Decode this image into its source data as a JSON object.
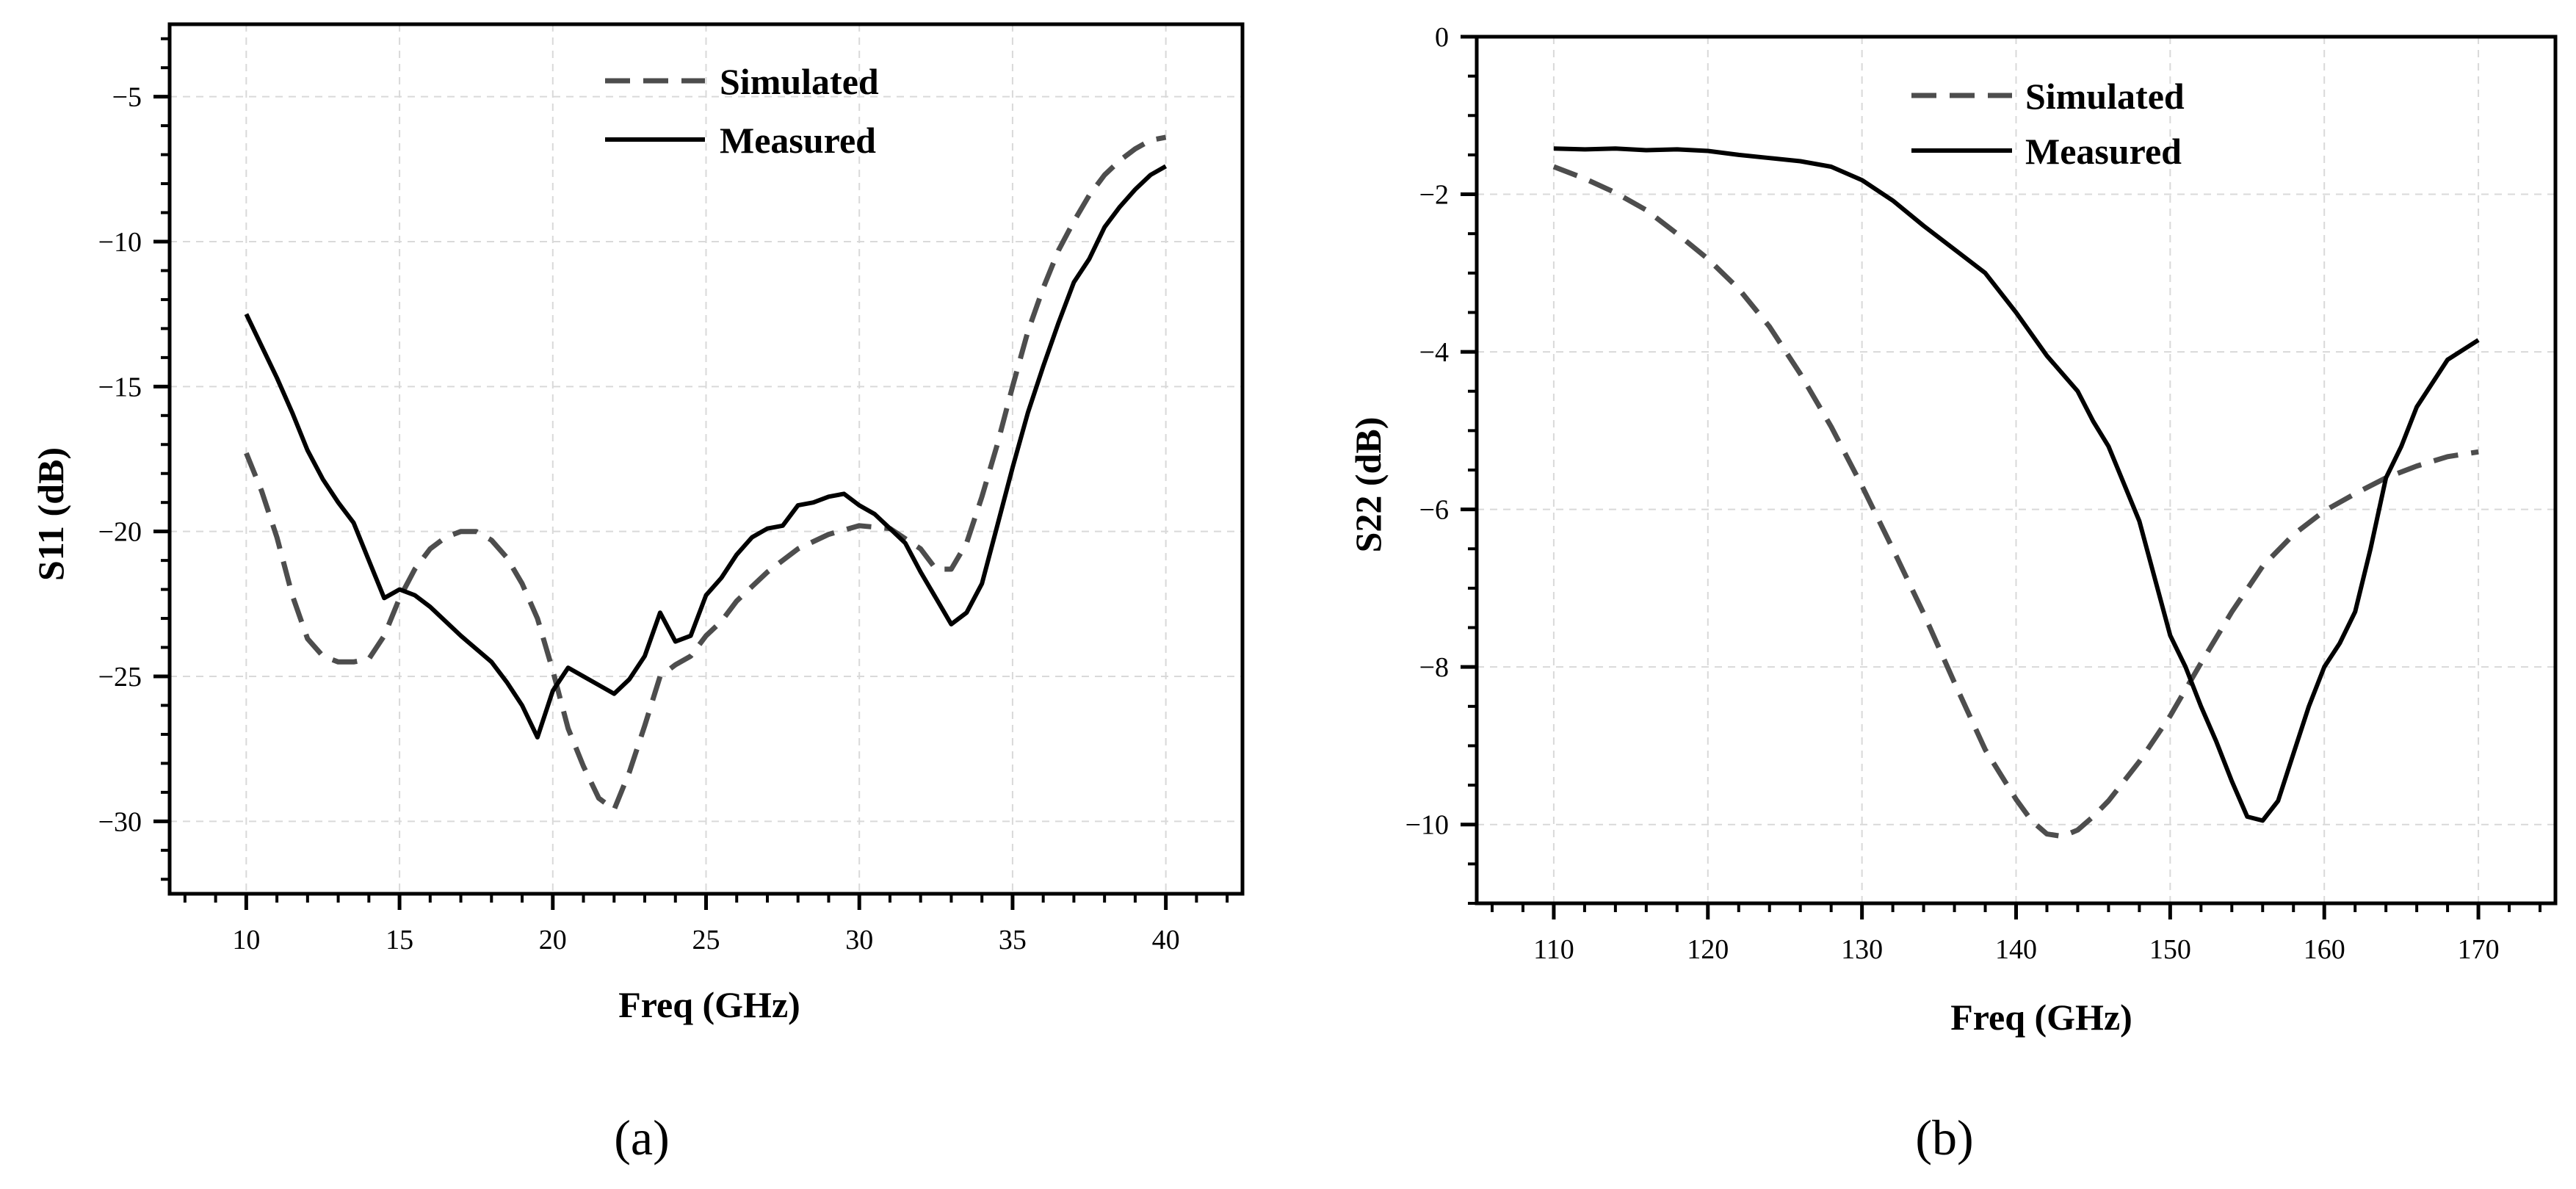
{
  "chart_data": [
    {
      "type": "line",
      "panel_label": "(a)",
      "xlabel": "Freq (GHz)",
      "ylabel": "S11 (dB)",
      "xlim": [
        7.5,
        42.5
      ],
      "ylim": [
        -32.5,
        -2.5
      ],
      "xticks": [
        10,
        15,
        20,
        25,
        30,
        35,
        40
      ],
      "yticks": [
        -30,
        -25,
        -20,
        -15,
        -10,
        -5
      ],
      "x_minor_step": 1,
      "y_minor_step": 1,
      "grid": true,
      "legend_position": "top-center",
      "series": [
        {
          "name": "Simulated",
          "style": "dashed",
          "color": "#4d4d4d",
          "x": [
            10,
            10.5,
            11,
            11.5,
            12,
            12.5,
            13,
            13.5,
            14,
            14.5,
            15,
            15.5,
            16,
            16.5,
            17,
            17.5,
            18,
            18.5,
            19,
            19.5,
            20,
            20.5,
            21,
            21.5,
            22,
            22.5,
            23,
            23.5,
            24,
            24.5,
            25,
            25.5,
            26,
            27,
            28,
            29,
            30,
            31,
            32,
            32.5,
            33,
            33.5,
            34,
            34.5,
            35,
            35.5,
            36,
            36.5,
            37,
            37.5,
            38,
            38.5,
            39,
            39.5,
            40
          ],
          "values": [
            -17.3,
            -18.6,
            -20.2,
            -22.2,
            -23.7,
            -24.3,
            -24.5,
            -24.5,
            -24.4,
            -23.6,
            -22.3,
            -21.3,
            -20.6,
            -20.2,
            -20.0,
            -20.0,
            -20.3,
            -20.9,
            -21.8,
            -23.0,
            -24.8,
            -26.8,
            -28.1,
            -29.2,
            -29.6,
            -28.3,
            -26.7,
            -25.0,
            -24.6,
            -24.3,
            -23.6,
            -23.1,
            -22.4,
            -21.4,
            -20.6,
            -20.1,
            -19.8,
            -19.9,
            -20.6,
            -21.3,
            -21.3,
            -20.4,
            -18.8,
            -17.0,
            -15.0,
            -13.1,
            -11.6,
            -10.3,
            -9.3,
            -8.4,
            -7.7,
            -7.2,
            -6.8,
            -6.5,
            -6.4
          ]
        },
        {
          "name": "Measured",
          "style": "solid",
          "color": "#000000",
          "x": [
            10,
            10.5,
            11,
            11.5,
            12,
            12.5,
            13,
            13.5,
            14,
            14.5,
            15,
            15.5,
            16,
            17,
            18,
            18.5,
            19,
            19.5,
            20,
            20.5,
            21,
            21.5,
            22,
            22.5,
            23,
            23.5,
            24,
            24.5,
            25,
            25.5,
            26,
            26.5,
            27,
            27.5,
            28,
            28.5,
            29,
            29.5,
            30,
            30.5,
            31,
            31.5,
            32,
            32.5,
            33,
            33.5,
            34,
            34.5,
            35,
            35.5,
            36,
            36.5,
            37,
            37.5,
            38,
            38.5,
            39,
            39.5,
            40
          ],
          "values": [
            -12.5,
            -13.6,
            -14.7,
            -15.9,
            -17.2,
            -18.2,
            -19.0,
            -19.7,
            -21.0,
            -22.3,
            -22.0,
            -22.2,
            -22.6,
            -23.6,
            -24.5,
            -25.2,
            -26.0,
            -27.1,
            -25.5,
            -24.7,
            -25.0,
            -25.3,
            -25.6,
            -25.1,
            -24.3,
            -22.8,
            -23.8,
            -23.6,
            -22.2,
            -21.6,
            -20.8,
            -20.2,
            -19.9,
            -19.8,
            -19.1,
            -19.0,
            -18.8,
            -18.7,
            -19.1,
            -19.4,
            -19.9,
            -20.4,
            -21.4,
            -22.3,
            -23.2,
            -22.8,
            -21.8,
            -19.8,
            -17.8,
            -15.9,
            -14.3,
            -12.8,
            -11.4,
            -10.6,
            -9.5,
            -8.8,
            -8.2,
            -7.7,
            -7.4
          ]
        }
      ]
    },
    {
      "type": "line",
      "panel_label": "(b)",
      "xlabel": "Freq (GHz)",
      "ylabel": "S22 (dB)",
      "xlim": [
        105,
        175
      ],
      "ylim": [
        -11,
        0
      ],
      "xticks": [
        110,
        120,
        130,
        140,
        150,
        160,
        170
      ],
      "yticks": [
        -10,
        -8,
        -6,
        -4,
        -2,
        0
      ],
      "x_minor_step": 2,
      "y_minor_step": 0.5,
      "grid": true,
      "legend_position": "top-center",
      "series": [
        {
          "name": "Simulated",
          "style": "dashed",
          "color": "#4d4d4d",
          "x": [
            110,
            112,
            114,
            116,
            118,
            120,
            122,
            124,
            126,
            128,
            130,
            132,
            134,
            136,
            138,
            140,
            141,
            142,
            143,
            144,
            145,
            146,
            148,
            150,
            152,
            154,
            156,
            158,
            160,
            162,
            164,
            166,
            168,
            170
          ],
          "values": [
            -1.65,
            -1.8,
            -1.98,
            -2.2,
            -2.5,
            -2.82,
            -3.2,
            -3.68,
            -4.28,
            -4.95,
            -5.7,
            -6.5,
            -7.32,
            -8.2,
            -9.05,
            -9.68,
            -9.95,
            -10.12,
            -10.15,
            -10.07,
            -9.9,
            -9.7,
            -9.2,
            -8.62,
            -7.95,
            -7.3,
            -6.72,
            -6.32,
            -6.02,
            -5.8,
            -5.6,
            -5.45,
            -5.33,
            -5.27
          ]
        },
        {
          "name": "Measured",
          "style": "solid",
          "color": "#000000",
          "x": [
            110,
            112,
            114,
            116,
            118,
            120,
            122,
            124,
            126,
            128,
            130,
            132,
            134,
            136,
            138,
            140,
            142,
            144,
            145,
            146,
            148,
            150,
            151,
            152,
            153,
            154,
            155,
            156,
            157,
            158,
            159,
            160,
            161,
            162,
            163,
            164,
            165,
            166,
            168,
            170
          ],
          "values": [
            -1.42,
            -1.43,
            -1.42,
            -1.44,
            -1.43,
            -1.45,
            -1.5,
            -1.54,
            -1.58,
            -1.65,
            -1.82,
            -2.08,
            -2.4,
            -2.7,
            -3.0,
            -3.5,
            -4.05,
            -4.5,
            -4.88,
            -5.2,
            -6.15,
            -7.6,
            -8.0,
            -8.5,
            -8.95,
            -9.45,
            -9.9,
            -9.95,
            -9.7,
            -9.1,
            -8.5,
            -8.0,
            -7.7,
            -7.3,
            -6.5,
            -5.6,
            -5.2,
            -4.7,
            -4.1,
            -3.85
          ]
        }
      ]
    }
  ]
}
